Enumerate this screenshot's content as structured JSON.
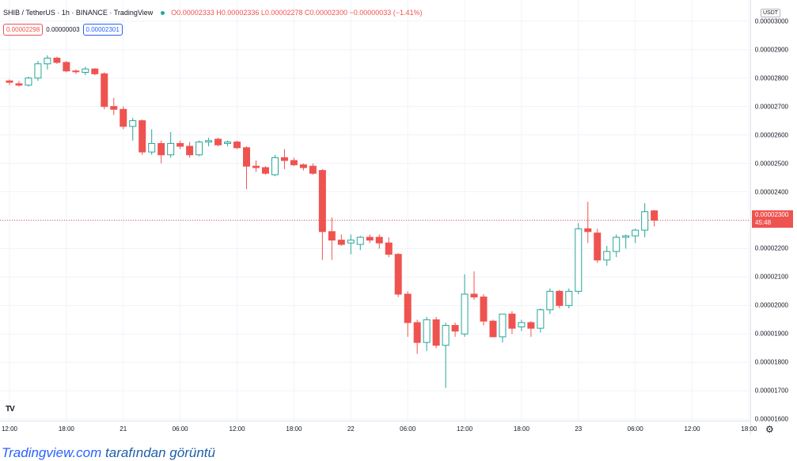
{
  "header": {
    "symbol": "SHIB / TetherUS · 1h · BINANCE · TradingView",
    "ohlc": "O0.00002333 H0.00002336 L0.00002278 C0.00002300 −0.00000033 (−1.41%)"
  },
  "bid": "0.00002298",
  "spread": "0.00000003",
  "ask": "0.00002301",
  "currency_label": "USDT",
  "current_price": "0.00002300",
  "countdown": "45:48",
  "logo_text": "TV",
  "caption": {
    "site": "Tradingview.com",
    "text": " tarafından görüntü"
  },
  "colors": {
    "up": "#26a69a",
    "down": "#ef5350",
    "grid": "#f0f3fa"
  },
  "chart_data": {
    "type": "candlestick",
    "title": "SHIB / TetherUS · 1h · BINANCE",
    "y_ticks": [
      "0.00003000",
      "0.00002900",
      "0.00002800",
      "0.00002700",
      "0.00002600",
      "0.00002500",
      "0.00002400",
      "0.00002300",
      "0.00002200",
      "0.00002100",
      "0.00002000",
      "0.00001900",
      "0.00001800",
      "0.00001700",
      "0.00001600"
    ],
    "y_tick_values": [
      3e-05,
      2.9e-05,
      2.8e-05,
      2.7e-05,
      2.6e-05,
      2.5e-05,
      2.4e-05,
      2.3e-05,
      2.2e-05,
      2.1e-05,
      2e-05,
      1.9e-05,
      1.8e-05,
      1.7e-05,
      1.6e-05
    ],
    "x_ticks": [
      "12:00",
      "18:00",
      "21",
      "06:00",
      "12:00",
      "18:00",
      "22",
      "06:00",
      "12:00",
      "18:00",
      "23",
      "06:00",
      "12:00",
      "18:00"
    ],
    "x_tick_candle_index": [
      0,
      6,
      12,
      18,
      24,
      30,
      36,
      42,
      48,
      54,
      60,
      66,
      72,
      78
    ],
    "ylim": [
      1.595e-05,
      3.03e-05
    ],
    "ohlc": [
      [
        2.79e-05,
        2.795e-05,
        2.775e-05,
        2.785e-05
      ],
      [
        2.78e-05,
        2.79e-05,
        2.77e-05,
        2.775e-05
      ],
      [
        2.775e-05,
        2.805e-05,
        2.77e-05,
        2.8e-05
      ],
      [
        2.8e-05,
        2.86e-05,
        2.79e-05,
        2.85e-05
      ],
      [
        2.85e-05,
        2.88e-05,
        2.83e-05,
        2.87e-05
      ],
      [
        2.87e-05,
        2.875e-05,
        2.85e-05,
        2.855e-05
      ],
      [
        2.855e-05,
        2.86e-05,
        2.82e-05,
        2.825e-05
      ],
      [
        2.825e-05,
        2.83e-05,
        2.815e-05,
        2.822e-05
      ],
      [
        2.82e-05,
        2.84e-05,
        2.81e-05,
        2.832e-05
      ],
      [
        2.832e-05,
        2.835e-05,
        2.81e-05,
        2.815e-05
      ],
      [
        2.815e-05,
        2.82e-05,
        2.69e-05,
        2.7e-05
      ],
      [
        2.7e-05,
        2.73e-05,
        2.67e-05,
        2.69e-05
      ],
      [
        2.69e-05,
        2.7e-05,
        2.62e-05,
        2.63e-05
      ],
      [
        2.63e-05,
        2.66e-05,
        2.58e-05,
        2.65e-05
      ],
      [
        2.65e-05,
        2.655e-05,
        2.53e-05,
        2.54e-05
      ],
      [
        2.54e-05,
        2.62e-05,
        2.53e-05,
        2.57e-05
      ],
      [
        2.57e-05,
        2.58e-05,
        2.5e-05,
        2.53e-05
      ],
      [
        2.53e-05,
        2.61e-05,
        2.52e-05,
        2.57e-05
      ],
      [
        2.57e-05,
        2.58e-05,
        2.55e-05,
        2.56e-05
      ],
      [
        2.56e-05,
        2.575e-05,
        2.52e-05,
        2.53e-05
      ],
      [
        2.53e-05,
        2.58e-05,
        2.525e-05,
        2.575e-05
      ],
      [
        2.575e-05,
        2.59e-05,
        2.56e-05,
        2.58e-05
      ],
      [
        2.585e-05,
        2.59e-05,
        2.56e-05,
        2.565e-05
      ],
      [
        2.57e-05,
        2.58e-05,
        2.56e-05,
        2.575e-05
      ],
      [
        2.575e-05,
        2.58e-05,
        2.55e-05,
        2.555e-05
      ],
      [
        2.555e-05,
        2.56e-05,
        2.41e-05,
        2.49e-05
      ],
      [
        2.49e-05,
        2.51e-05,
        2.47e-05,
        2.485e-05
      ],
      [
        2.485e-05,
        2.49e-05,
        2.46e-05,
        2.465e-05
      ],
      [
        2.46e-05,
        2.53e-05,
        2.455e-05,
        2.52e-05
      ],
      [
        2.52e-05,
        2.55e-05,
        2.48e-05,
        2.51e-05
      ],
      [
        2.51e-05,
        2.52e-05,
        2.49e-05,
        2.495e-05
      ],
      [
        2.495e-05,
        2.5e-05,
        2.475e-05,
        2.485e-05
      ],
      [
        2.49e-05,
        2.5e-05,
        2.46e-05,
        2.465e-05
      ],
      [
        2.475e-05,
        2.48e-05,
        2.16e-05,
        2.26e-05
      ],
      [
        2.26e-05,
        2.31e-05,
        2.16e-05,
        2.23e-05
      ],
      [
        2.23e-05,
        2.25e-05,
        2.21e-05,
        2.215e-05
      ],
      [
        2.22e-05,
        2.25e-05,
        2.18e-05,
        2.23e-05
      ],
      [
        2.215e-05,
        2.245e-05,
        2.195e-05,
        2.24e-05
      ],
      [
        2.24e-05,
        2.25e-05,
        2.22e-05,
        2.23e-05
      ],
      [
        2.24e-05,
        2.25e-05,
        2.2e-05,
        2.22e-05
      ],
      [
        2.22e-05,
        2.24e-05,
        2.17e-05,
        2.18e-05
      ],
      [
        2.18e-05,
        2.185e-05,
        2.03e-05,
        2.04e-05
      ],
      [
        2.04e-05,
        2.05e-05,
        1.89e-05,
        1.94e-05
      ],
      [
        1.94e-05,
        1.95e-05,
        1.83e-05,
        1.87e-05
      ],
      [
        1.87e-05,
        1.96e-05,
        1.84e-05,
        1.95e-05
      ],
      [
        1.95e-05,
        1.96e-05,
        1.85e-05,
        1.86e-05
      ],
      [
        1.86e-05,
        1.94e-05,
        1.71e-05,
        1.93e-05
      ],
      [
        1.93e-05,
        1.94e-05,
        1.89e-05,
        1.91e-05
      ],
      [
        1.9e-05,
        2.11e-05,
        1.89e-05,
        2.04e-05
      ],
      [
        2.04e-05,
        2.12e-05,
        2.02e-05,
        2.03e-05
      ],
      [
        2.03e-05,
        2.04e-05,
        1.93e-05,
        1.945e-05
      ],
      [
        1.945e-05,
        1.95e-05,
        1.89e-05,
        1.89e-05
      ],
      [
        1.89e-05,
        1.96e-05,
        1.87e-05,
        1.97e-05
      ],
      [
        1.97e-05,
        1.98e-05,
        1.9e-05,
        1.92e-05
      ],
      [
        1.925e-05,
        1.95e-05,
        1.91e-05,
        1.94e-05
      ],
      [
        1.94e-05,
        1.945e-05,
        1.89e-05,
        1.92e-05
      ],
      [
        1.92e-05,
        1.99e-05,
        1.905e-05,
        1.985e-05
      ],
      [
        1.985e-05,
        2.06e-05,
        1.97e-05,
        2.05e-05
      ],
      [
        2.05e-05,
        2.055e-05,
        1.99e-05,
        2e-05
      ],
      [
        2e-05,
        2.06e-05,
        1.99e-05,
        2.05e-05
      ],
      [
        2.05e-05,
        2.29e-05,
        2.04e-05,
        2.27e-05
      ],
      [
        2.27e-05,
        2.365e-05,
        2.22e-05,
        2.26e-05
      ],
      [
        2.255e-05,
        2.27e-05,
        2.15e-05,
        2.16e-05
      ],
      [
        2.16e-05,
        2.21e-05,
        2.14e-05,
        2.19e-05
      ],
      [
        2.19e-05,
        2.25e-05,
        2.17e-05,
        2.24e-05
      ],
      [
        2.24e-05,
        2.25e-05,
        2.2e-05,
        2.245e-05
      ],
      [
        2.245e-05,
        2.27e-05,
        2.22e-05,
        2.265e-05
      ],
      [
        2.265e-05,
        2.36e-05,
        2.24e-05,
        2.33e-05
      ],
      [
        2.333e-05,
        2.336e-05,
        2.278e-05,
        2.3e-05
      ]
    ]
  }
}
